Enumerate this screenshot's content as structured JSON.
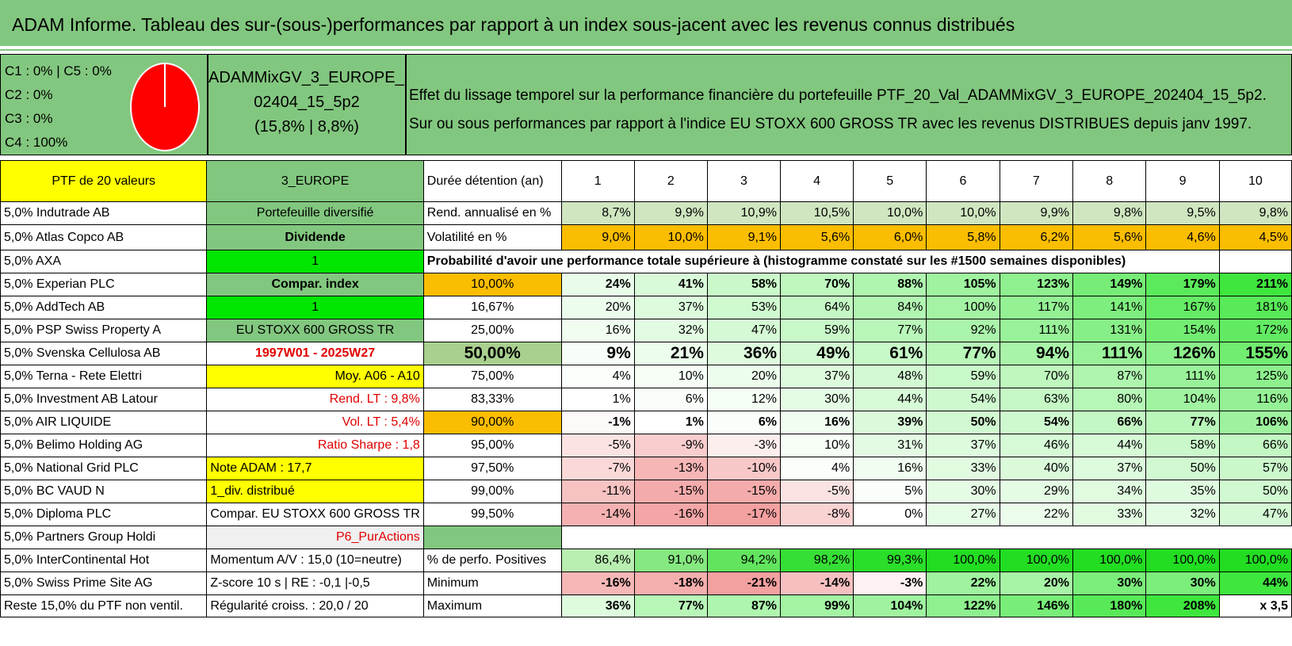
{
  "title": "ADAM Informe. Tableau des sur-(sous-)performances par rapport à un index sous-jacent avec les revenus connus distribués",
  "classes": [
    "C1 : 0% | C5 : 0%",
    "C2 : 0%",
    "C3 : 0%",
    "C4 : 100%"
  ],
  "pie_color": "#ff0000",
  "portfolio": {
    "name_line1": "ADAMMixGV_3_EUROPE_2",
    "name_line2": "02404_15_5p2",
    "name_line3": "(15,8% | 8,8%)",
    "desc_line1": "Effet du lissage temporel sur la performance financière du portefeuille PTF_20_Val_ADAMMixGV_3_EUROPE_202404_15_5p2.",
    "desc_line2": "Sur ou sous performances par rapport à l'indice EU STOXX 600 GROSS TR avec les revenus DISTRIBUES depuis janv 1997."
  },
  "header_row": {
    "ptf": "PTF de 20 valeurs",
    "zone": "3_EUROPE",
    "label": "Durée détention (an)",
    "years": [
      "1",
      "2",
      "3",
      "4",
      "5",
      "6",
      "7",
      "8",
      "9",
      "10"
    ]
  },
  "holdings": [
    "5,0% Indutrade AB",
    "5,0% Atlas Copco AB",
    "5,0% AXA",
    "5,0% Experian PLC",
    "5,0% AddTech AB",
    "5,0% PSP Swiss Property A",
    "5,0% Svenska Cellulosa AB",
    "5,0% Terna - Rete Elettri",
    "5,0% Investment AB Latour",
    "5,0% AIR LIQUIDE",
    "5,0% Belimo Holding AG",
    "5,0% National Grid PLC",
    "5,0% BC VAUD N",
    "5,0% Diploma PLC",
    "5,0% Partners Group Holdi",
    "5,0% InterContinental Hot",
    "5,0% Swiss Prime Site AG",
    "Reste 15,0% du PTF non ventil."
  ],
  "info_col": [
    "Portefeuille diversifié",
    "Dividende",
    "1",
    "Compar. index",
    "1",
    "EU STOXX 600 GROSS TR",
    "1997W01 - 2025W27",
    "Moy. A06 - A10",
    "Rend. LT : 9,8%",
    "Vol. LT : 5,4%",
    "Ratio Sharpe : 1,8",
    "Note ADAM : 17,7",
    "1_div. distribué",
    "Compar. EU STOXX 600 GROSS TR",
    "P6_PurActions",
    "Momentum A/V : 15,0 (10=neutre)",
    "Z-score 10 s | RE : -0,1 |-0,5",
    "Régularité croiss. : 20,0 / 20"
  ],
  "rend": {
    "label": "Rend. annualisé en %",
    "values": [
      "8,7%",
      "9,9%",
      "10,9%",
      "10,5%",
      "10,0%",
      "10,0%",
      "9,9%",
      "9,8%",
      "9,5%",
      "9,8%"
    ]
  },
  "vol": {
    "label": "Volatilité en %",
    "values": [
      "9,0%",
      "10,0%",
      "9,1%",
      "5,6%",
      "6,0%",
      "5,8%",
      "6,2%",
      "5,6%",
      "4,6%",
      "4,5%"
    ]
  },
  "prob_title": "Probabilité d'avoir une performance totale supérieure à (histogramme constaté sur les #1500 semaines disponibles)",
  "prob_rows": [
    {
      "p": "10,00%",
      "v": [
        "24%",
        "41%",
        "58%",
        "70%",
        "88%",
        "105%",
        "123%",
        "149%",
        "179%",
        "211%"
      ]
    },
    {
      "p": "16,67%",
      "v": [
        "20%",
        "37%",
        "53%",
        "64%",
        "84%",
        "100%",
        "117%",
        "141%",
        "167%",
        "181%"
      ]
    },
    {
      "p": "25,00%",
      "v": [
        "16%",
        "32%",
        "47%",
        "59%",
        "77%",
        "92%",
        "111%",
        "131%",
        "154%",
        "172%"
      ]
    },
    {
      "p": "50,00%",
      "v": [
        "9%",
        "21%",
        "36%",
        "49%",
        "61%",
        "77%",
        "94%",
        "111%",
        "126%",
        "155%"
      ]
    },
    {
      "p": "75,00%",
      "v": [
        "4%",
        "10%",
        "20%",
        "37%",
        "48%",
        "59%",
        "70%",
        "87%",
        "111%",
        "125%"
      ]
    },
    {
      "p": "83,33%",
      "v": [
        "1%",
        "6%",
        "12%",
        "30%",
        "44%",
        "54%",
        "63%",
        "80%",
        "104%",
        "116%"
      ]
    },
    {
      "p": "90,00%",
      "v": [
        "-1%",
        "1%",
        "6%",
        "16%",
        "39%",
        "50%",
        "54%",
        "66%",
        "77%",
        "106%"
      ]
    },
    {
      "p": "95,00%",
      "v": [
        "-5%",
        "-9%",
        "-3%",
        "10%",
        "31%",
        "37%",
        "46%",
        "44%",
        "58%",
        "66%"
      ]
    },
    {
      "p": "97,50%",
      "v": [
        "-7%",
        "-13%",
        "-10%",
        "4%",
        "16%",
        "33%",
        "40%",
        "37%",
        "50%",
        "57%"
      ]
    },
    {
      "p": "99,00%",
      "v": [
        "-11%",
        "-15%",
        "-15%",
        "-5%",
        "5%",
        "30%",
        "29%",
        "34%",
        "35%",
        "50%"
      ]
    },
    {
      "p": "99,50%",
      "v": [
        "-14%",
        "-16%",
        "-17%",
        "-8%",
        "0%",
        "27%",
        "22%",
        "33%",
        "32%",
        "47%"
      ]
    }
  ],
  "pos": {
    "label": "% de perfo. Positives",
    "values": [
      "86,4%",
      "91,0%",
      "94,2%",
      "98,2%",
      "99,3%",
      "100,0%",
      "100,0%",
      "100,0%",
      "100,0%",
      "100,0%"
    ]
  },
  "min": {
    "label": "Minimum",
    "values": [
      "-16%",
      "-18%",
      "-21%",
      "-14%",
      "-3%",
      "22%",
      "20%",
      "30%",
      "30%",
      "44%"
    ]
  },
  "max": {
    "label": "Maximum",
    "values": [
      "36%",
      "77%",
      "87%",
      "99%",
      "104%",
      "122%",
      "146%",
      "180%",
      "208%",
      "x 3,5"
    ]
  }
}
